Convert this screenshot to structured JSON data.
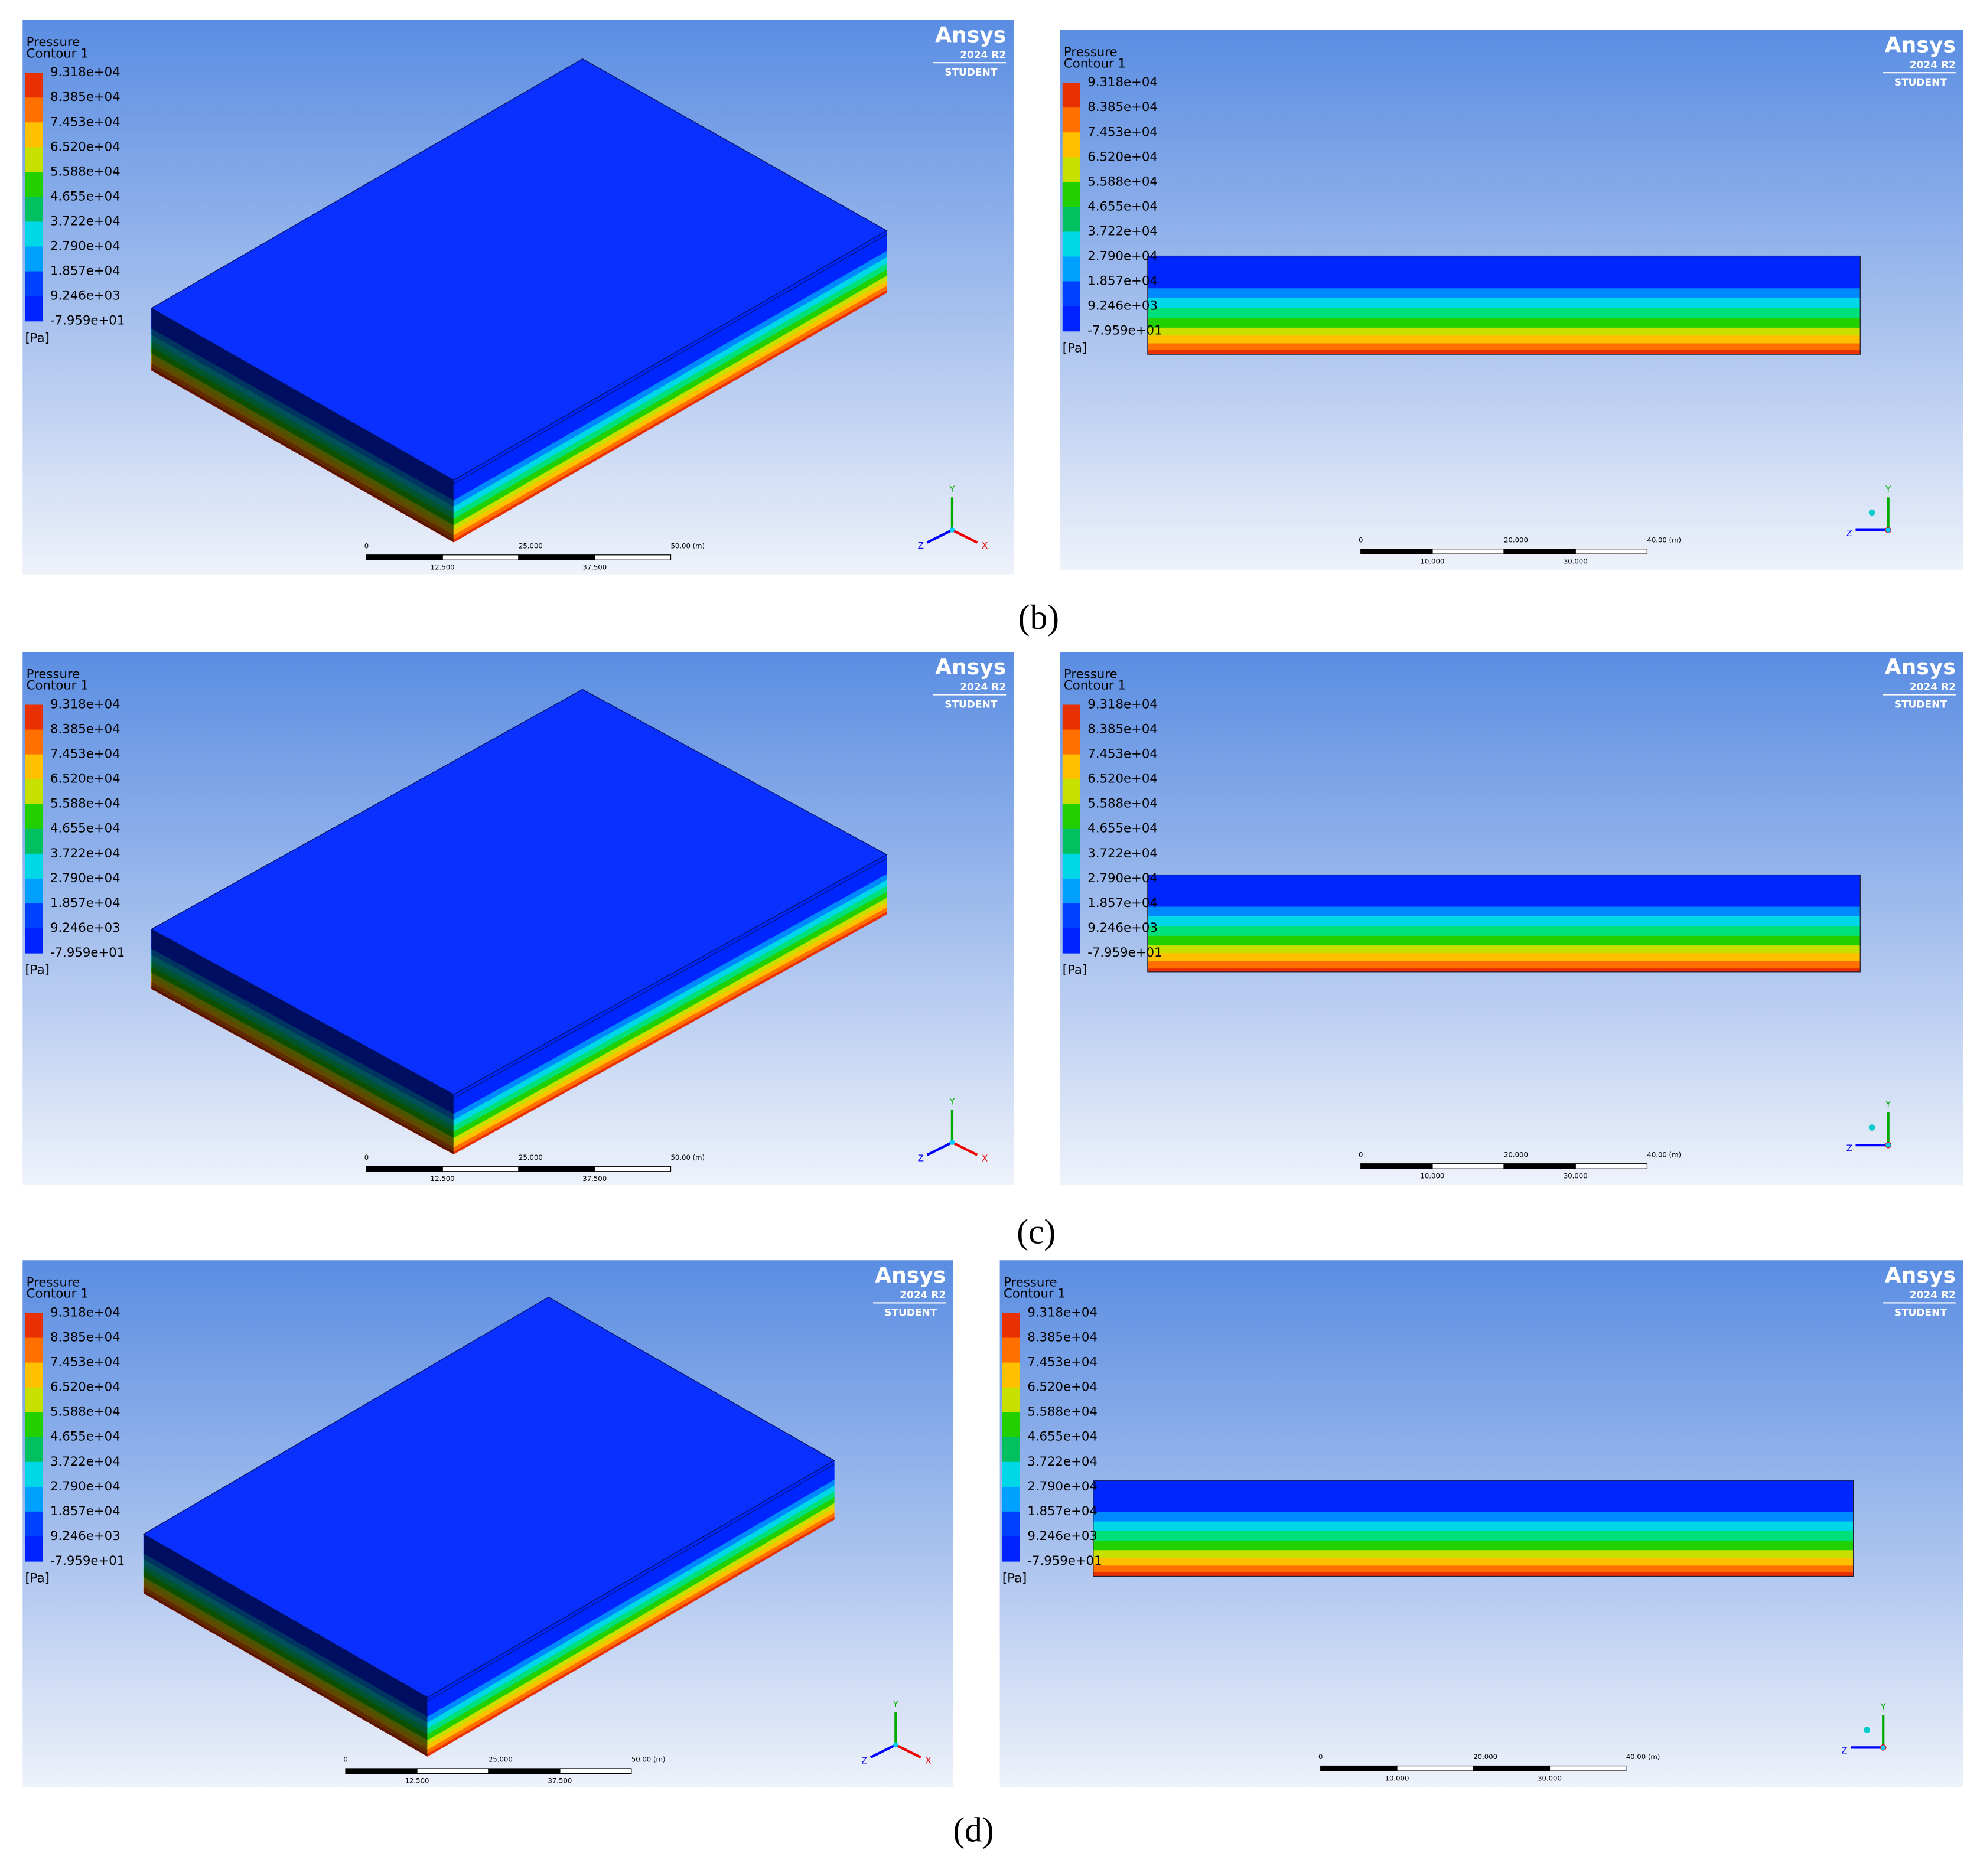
{
  "legend": {
    "title": "Pressure",
    "subtitle": "Contour 1",
    "labels": [
      "9.318e+04",
      "8.385e+04",
      "7.453e+04",
      "6.520e+04",
      "5.588e+04",
      "4.655e+04",
      "3.722e+04",
      "2.790e+04",
      "1.857e+04",
      "9.246e+03",
      "-7.959e+01"
    ],
    "unit": "[Pa]"
  },
  "logo": {
    "brand": "Ansys",
    "version": "2024 R2",
    "edition": "STUDENT"
  },
  "rows": [
    {
      "caption": "(b)",
      "views": [
        {
          "kind": "iso",
          "scale_top": [
            "0",
            "25.000",
            "50.00 (m)"
          ],
          "scale_bottom": [
            "12.500",
            "37.500"
          ],
          "axes": [
            "Y",
            "Z",
            "X"
          ]
        },
        {
          "kind": "side",
          "scale_top": [
            "0",
            "20.000",
            "40.00 (m)"
          ],
          "scale_bottom": [
            "10.000",
            "30.000"
          ],
          "axes": [
            "Y",
            "Z"
          ]
        }
      ]
    },
    {
      "caption": "(c)",
      "views": [
        {
          "kind": "iso",
          "scale_top": [
            "0",
            "25.000",
            "50.00 (m)"
          ],
          "scale_bottom": [
            "12.500",
            "37.500"
          ],
          "axes": [
            "Y",
            "Z",
            "X"
          ]
        },
        {
          "kind": "side",
          "scale_top": [
            "0",
            "20.000",
            "40.00 (m)"
          ],
          "scale_bottom": [
            "10.000",
            "30.000"
          ],
          "axes": [
            "Y",
            "Z"
          ]
        }
      ]
    },
    {
      "caption": "(d)",
      "views": [
        {
          "kind": "iso",
          "scale_top": [
            "0",
            "25.000",
            "50.00 (m)"
          ],
          "scale_bottom": [
            "12.500",
            "37.500"
          ],
          "axes": [
            "Y",
            "Z",
            "X"
          ]
        },
        {
          "kind": "side",
          "scale_top": [
            "0",
            "20.000",
            "40.00 (m)"
          ],
          "scale_bottom": [
            "10.000",
            "30.000"
          ],
          "axes": [
            "Y",
            "Z"
          ]
        }
      ]
    }
  ]
}
